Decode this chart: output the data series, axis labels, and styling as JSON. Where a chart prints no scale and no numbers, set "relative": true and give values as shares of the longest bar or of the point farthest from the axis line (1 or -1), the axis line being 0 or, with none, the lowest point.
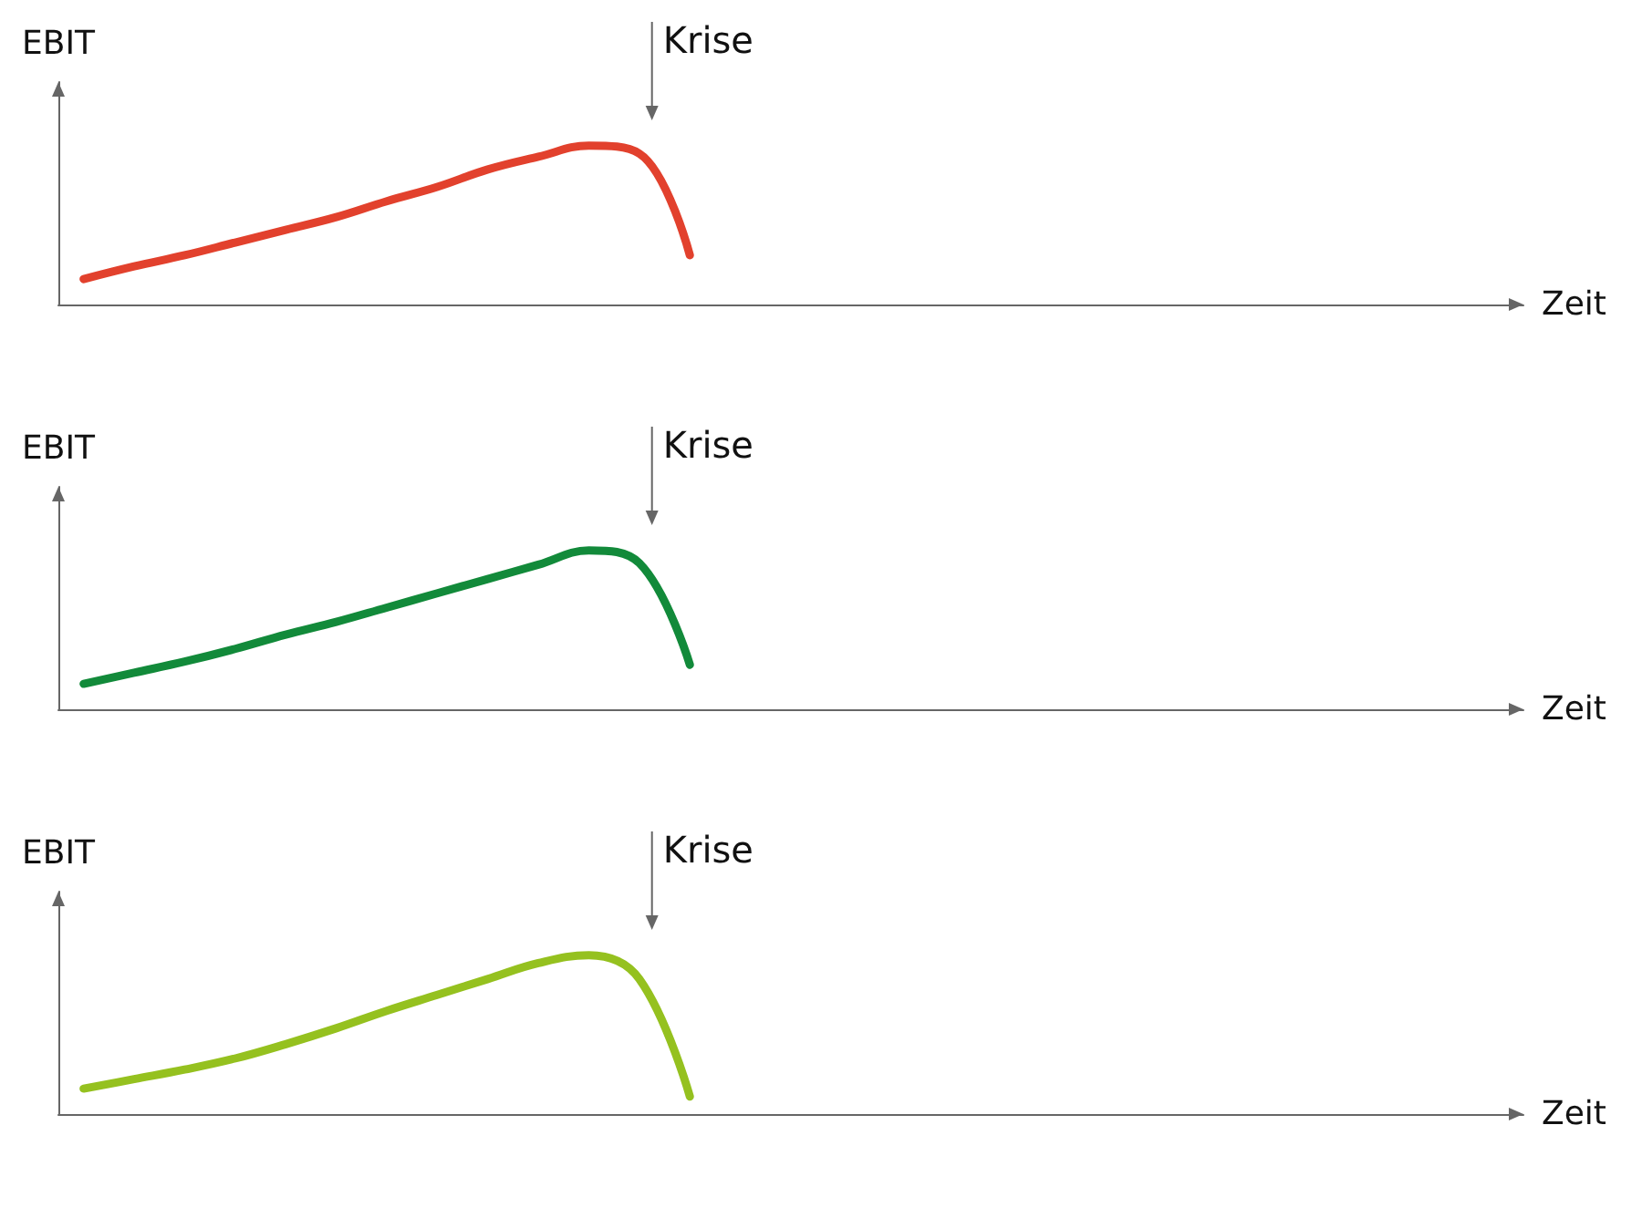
{
  "chart_data": [
    {
      "type": "line",
      "relative": true,
      "ylabel": "EBIT",
      "xlabel": "Zeit",
      "annotations": [
        "Krise"
      ],
      "categories": [
        null,
        null,
        null,
        null,
        null,
        null,
        null,
        null,
        null,
        null,
        null,
        null,
        null,
        null,
        null,
        null,
        null,
        null,
        null,
        null,
        null,
        null,
        null,
        null,
        null,
        null,
        null,
        null,
        null
      ],
      "series": [
        {
          "color": "#e2412d",
          "values": [
            0.16,
            0.24,
            0.31,
            0.39,
            0.47,
            0.55,
            0.65,
            0.74,
            0.85,
            0.93,
            1,
            0.95,
            0.31,
            null,
            null,
            null,
            null,
            null,
            null,
            null,
            null,
            null,
            null,
            null,
            null,
            null,
            null,
            null,
            null
          ]
        }
      ],
      "marker": "none"
    },
    {
      "type": "line",
      "relative": true,
      "ylabel": "EBIT",
      "xlabel": "Zeit",
      "annotations": [
        "Krise"
      ],
      "categories": [
        null,
        null,
        null,
        null,
        null,
        null,
        null,
        null,
        null,
        null,
        null,
        null,
        null,
        null,
        null,
        null,
        null,
        null,
        null,
        null,
        null,
        null,
        null,
        null,
        null,
        null,
        null,
        null,
        null
      ],
      "series": [
        {
          "color": "#128a3a",
          "values": [
            0.16,
            0.23,
            0.3,
            0.38,
            0.47,
            0.55,
            0.64,
            0.73,
            0.82,
            0.91,
            1,
            0.92,
            0.28,
            null,
            null,
            null,
            null,
            null,
            null,
            null,
            null,
            null,
            null,
            null,
            null,
            null,
            null,
            null,
            null
          ]
        }
      ],
      "marker": "none"
    },
    {
      "type": "line",
      "relative": true,
      "ylabel": "EBIT",
      "xlabel": "Zeit",
      "annotations": [
        "Krise"
      ],
      "categories": [
        null,
        null,
        null,
        null,
        null,
        null,
        null,
        null,
        null,
        null,
        null,
        null,
        null,
        null,
        null,
        null,
        null,
        null,
        null,
        null,
        null,
        null,
        null,
        null,
        null,
        null,
        null,
        null,
        null
      ],
      "series": [
        {
          "color": "#95c11f",
          "values": [
            0.16,
            0.22,
            0.28,
            0.35,
            0.44,
            0.54,
            0.65,
            0.75,
            0.85,
            0.95,
            1,
            0.85,
            0.11,
            null,
            null,
            null,
            null,
            null,
            null,
            null,
            null,
            null,
            null,
            null,
            null,
            null,
            null,
            null,
            null
          ]
        }
      ],
      "marker": "none"
    }
  ]
}
